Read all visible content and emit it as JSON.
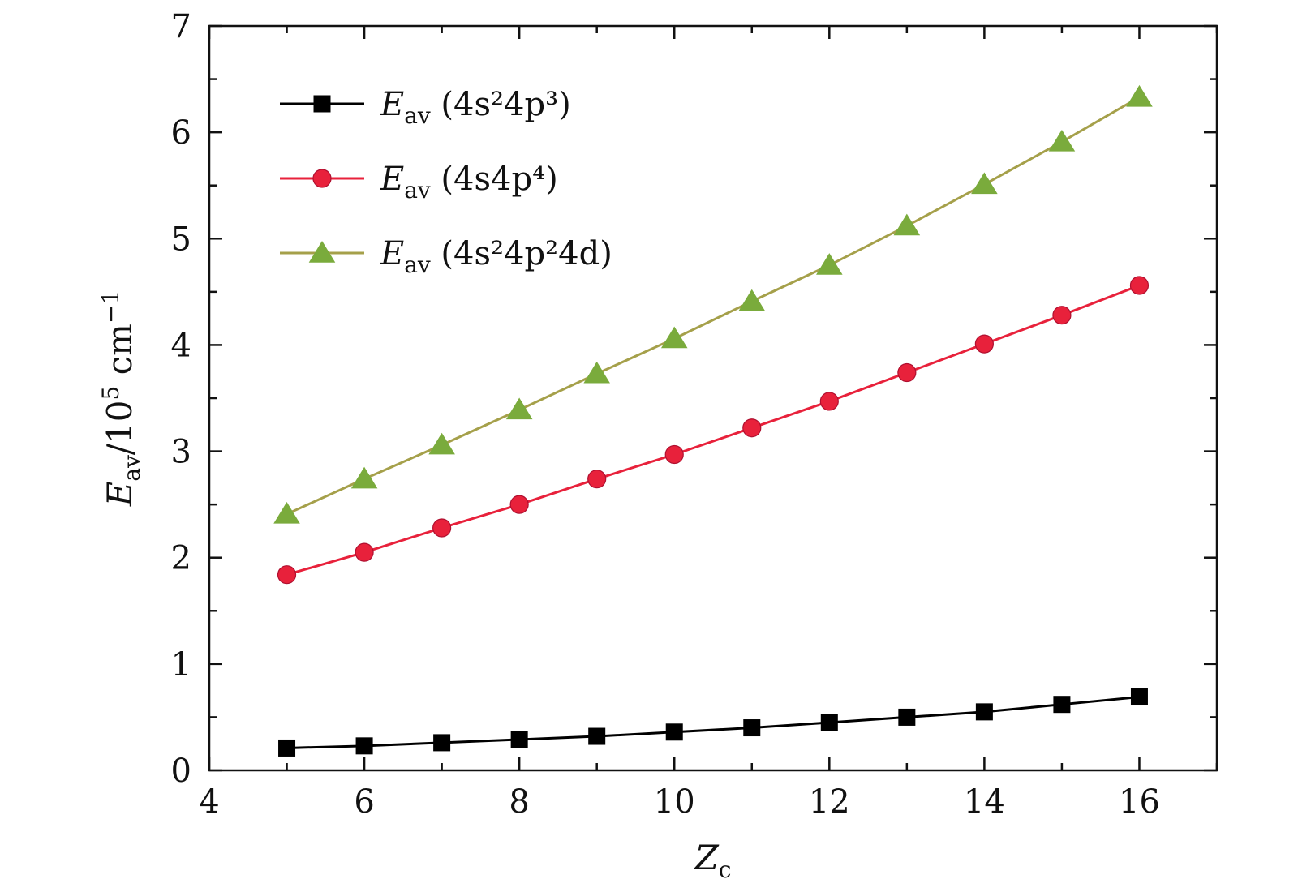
{
  "chart_data": {
    "type": "line",
    "title": "",
    "xlabel": {
      "main": "Z",
      "sub": "c"
    },
    "ylabel": {
      "main": "E",
      "sub": "av",
      "unit_prefix": "/10",
      "unit_exp": "5",
      "unit": " cm",
      "unit_tail_exp": "−1"
    },
    "xlim": [
      4,
      17
    ],
    "ylim": [
      0,
      7
    ],
    "xticks": [
      "4",
      "6",
      "8",
      "10",
      "12",
      "14",
      "16"
    ],
    "yticks": [
      "0",
      "1",
      "2",
      "3",
      "4",
      "5",
      "6",
      "7"
    ],
    "x": [
      5,
      6,
      7,
      8,
      9,
      10,
      11,
      12,
      13,
      14,
      15,
      16
    ],
    "legend_position": "top-left",
    "series": [
      {
        "name": "E_av (4s²4p³)",
        "legend": {
          "main": "E",
          "sub": "av",
          "config": " (4s²4p³)"
        },
        "color": "#000000",
        "marker": "square",
        "values": [
          0.21,
          0.23,
          0.26,
          0.29,
          0.32,
          0.36,
          0.4,
          0.45,
          0.5,
          0.55,
          0.62,
          0.69
        ]
      },
      {
        "name": "E_av (4s4p⁴)",
        "legend": {
          "main": "E",
          "sub": "av",
          "config": " (4s4p⁴)"
        },
        "color": "#e8213b",
        "marker": "circle",
        "values": [
          1.84,
          2.05,
          2.28,
          2.5,
          2.74,
          2.97,
          3.22,
          3.47,
          3.74,
          4.01,
          4.28,
          4.56
        ]
      },
      {
        "name": "E_av (4s²4p²4d)",
        "legend": {
          "main": "E",
          "sub": "av",
          "config": " (4s²4p²4d)"
        },
        "color": "#7aab3c",
        "line_color": "#a5a04a",
        "marker": "triangle",
        "values": [
          2.41,
          2.74,
          3.06,
          3.39,
          3.73,
          4.06,
          4.41,
          4.75,
          5.12,
          5.51,
          5.91,
          6.33
        ]
      }
    ]
  }
}
